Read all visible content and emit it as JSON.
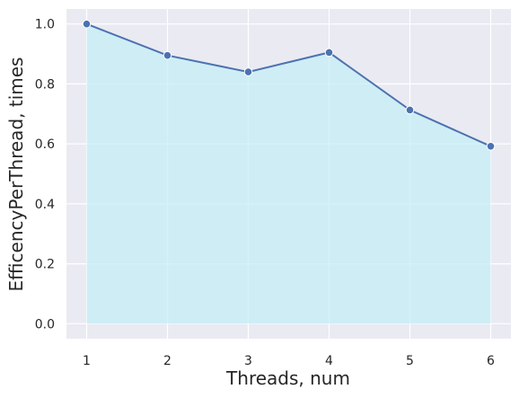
{
  "chart_data": {
    "type": "area",
    "x": [
      1,
      2,
      3,
      4,
      5,
      6
    ],
    "series": [
      {
        "values": [
          1.0,
          0.895,
          0.84,
          0.905,
          0.713,
          0.592
        ]
      }
    ],
    "xlabel": "Threads, num",
    "ylabel": "EfficencyPerThread, times",
    "xlim": [
      0.75,
      6.25
    ],
    "ylim": [
      -0.05,
      1.05
    ],
    "x_ticks": [
      "1",
      "2",
      "3",
      "4",
      "5",
      "6"
    ],
    "y_ticks": [
      "0.0",
      "0.2",
      "0.4",
      "0.6",
      "0.8",
      "1.0"
    ],
    "grid": true,
    "colors": {
      "background": "#EAEAF2",
      "grid": "#FFFFFF",
      "line": "#4C72B0",
      "fill": "#C6EEF5"
    }
  }
}
